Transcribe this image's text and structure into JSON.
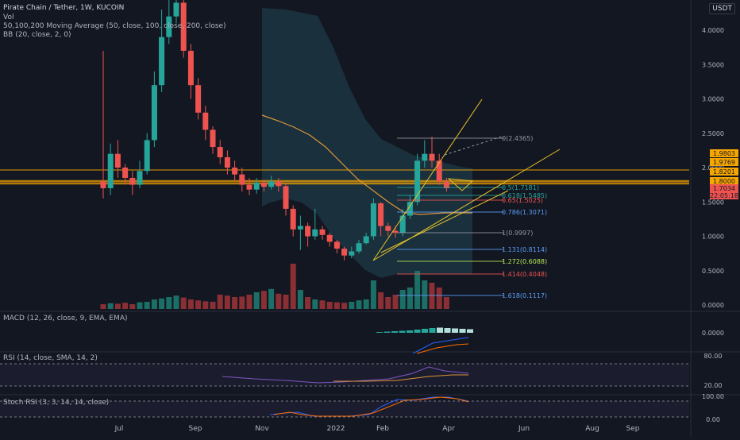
{
  "header": {
    "title": "Pirate Chain / Tether, 1W, KUCOIN",
    "currency": "USDT",
    "indicators": [
      "Vol",
      "50,100,200 Moving Average (50, close, 100, close, 200, close)",
      "BB (20, close, 2, 0)"
    ]
  },
  "panes": {
    "macd_label": "MACD (12, 26, close, 9, EMA, EMA)",
    "rsi_label": "RSI (14, close, SMA, 14, 2)",
    "stoch_label": "Stoch RSI (3, 3, 14, 14, close)"
  },
  "colors": {
    "up": "#26a69a",
    "down": "#ef5350",
    "bb_fill": "#1c3340",
    "ma": "#e0953a",
    "fib_line": "#9598a1",
    "channel": "#e6c229"
  },
  "chart_data": [
    {
      "type": "candlestick",
      "title": "Pirate Chain / Tether, 1W, KUCOIN",
      "y_scale": "log",
      "ylim": [
        0.0,
        4.5
      ],
      "y_ticks": [
        "4.0000",
        "3.5000",
        "3.0000",
        "2.5000",
        "2.0000",
        "1.5000",
        "1.0000",
        "0.5000",
        "0.0000"
      ],
      "x_ticks": [
        "Jul",
        "Sep",
        "Nov",
        "2022",
        "Feb",
        "Apr",
        "Jun",
        "Aug",
        "Sep"
      ],
      "price_labels": [
        {
          "text": "1.9803",
          "color": "#f7a600"
        },
        {
          "text": "1.9769",
          "color": "#f7a600"
        },
        {
          "text": "1.8201",
          "color": "#f7a600"
        },
        {
          "text": "1.8000",
          "color": "#f7a600"
        },
        {
          "text": "1.7034",
          "color": "#ef5350"
        },
        {
          "text": "22:05:18",
          "color": "#ef5350"
        }
      ],
      "fib_levels": [
        {
          "label": "0(2.4365)",
          "value": 2.4365,
          "color": "#9598a1"
        },
        {
          "label": "0.5(1.7181)",
          "value": 1.7181,
          "color": "#26a69a"
        },
        {
          "label": "0.618(1.5485)",
          "value": 1.5485,
          "color": "#26a69a"
        },
        {
          "label": "0.65(1.5025)",
          "value": 1.5025,
          "color": "#ef5350"
        },
        {
          "label": "0.786(1.3071)",
          "value": 1.3071,
          "color": "#5b9cf6"
        },
        {
          "label": "1(0.9997)",
          "value": 0.9997,
          "color": "#9598a1"
        },
        {
          "label": "1.131(0.8114)",
          "value": 0.8114,
          "color": "#5b9cf6"
        },
        {
          "label": "1.272(0.6088)",
          "value": 0.6088,
          "color": "#b5e853"
        },
        {
          "label": "1.414(0.4048)",
          "value": 0.4048,
          "color": "#ef5350"
        },
        {
          "label": "1.618(0.1117)",
          "value": 0.1117,
          "color": "#5b9cf6"
        }
      ],
      "horizontal_levels": [
        1.9803,
        1.8201,
        1.8
      ],
      "candles": [
        [
          1.8,
          1.7,
          3.7,
          1.55
        ],
        [
          1.7,
          2.2,
          2.35,
          1.6
        ],
        [
          2.2,
          2.0,
          2.4,
          1.85
        ],
        [
          2.0,
          1.85,
          2.05,
          1.75
        ],
        [
          1.85,
          1.75,
          1.95,
          1.6
        ],
        [
          1.75,
          1.95,
          2.1,
          1.7
        ],
        [
          1.95,
          2.4,
          2.5,
          1.9
        ],
        [
          2.4,
          3.2,
          3.4,
          2.3
        ],
        [
          3.2,
          3.9,
          4.3,
          3.1
        ],
        [
          3.9,
          4.2,
          4.5,
          3.8
        ],
        [
          4.2,
          4.4,
          4.6,
          4.1
        ],
        [
          4.4,
          3.7,
          4.5,
          3.6
        ],
        [
          3.7,
          3.2,
          3.8,
          3.0
        ],
        [
          3.2,
          2.8,
          3.3,
          2.7
        ],
        [
          2.8,
          2.55,
          2.9,
          2.4
        ],
        [
          2.55,
          2.3,
          2.6,
          2.2
        ],
        [
          2.3,
          2.15,
          2.4,
          2.05
        ],
        [
          2.15,
          2.0,
          2.25,
          1.9
        ],
        [
          2.0,
          1.9,
          2.1,
          1.8
        ],
        [
          1.9,
          1.75,
          2.0,
          1.65
        ],
        [
          1.75,
          1.68,
          1.85,
          1.6
        ],
        [
          1.68,
          1.78,
          1.85,
          1.62
        ],
        [
          1.78,
          1.72,
          1.82,
          1.65
        ],
        [
          1.72,
          1.8,
          1.88,
          1.68
        ],
        [
          1.8,
          1.73,
          1.85,
          1.65
        ],
        [
          1.73,
          1.4,
          1.78,
          1.3
        ],
        [
          1.4,
          1.1,
          1.45,
          1.0
        ],
        [
          1.1,
          1.15,
          1.3,
          0.8
        ],
        [
          1.15,
          1.0,
          1.2,
          0.85
        ],
        [
          1.0,
          1.1,
          1.4,
          0.95
        ],
        [
          1.1,
          1.02,
          1.15,
          0.95
        ],
        [
          1.02,
          0.92,
          1.05,
          0.85
        ],
        [
          0.92,
          0.82,
          0.95,
          0.75
        ],
        [
          0.82,
          0.72,
          0.85,
          0.65
        ],
        [
          0.72,
          0.78,
          0.85,
          0.68
        ],
        [
          0.78,
          0.9,
          0.95,
          0.75
        ],
        [
          0.9,
          1.0,
          1.05,
          0.88
        ],
        [
          1.0,
          1.48,
          1.55,
          0.95
        ],
        [
          1.48,
          1.15,
          1.5,
          1.0
        ],
        [
          1.15,
          1.08,
          1.2,
          1.0
        ],
        [
          1.08,
          1.05,
          1.15,
          0.98
        ],
        [
          1.05,
          1.3,
          1.4,
          1.0
        ],
        [
          1.3,
          1.5,
          1.6,
          1.25
        ],
        [
          1.5,
          2.1,
          2.2,
          1.45
        ],
        [
          2.1,
          2.2,
          2.4,
          2.0
        ],
        [
          2.2,
          2.1,
          2.45,
          2.0
        ],
        [
          2.1,
          1.8,
          2.2,
          1.75
        ],
        [
          1.8,
          1.7,
          1.85,
          1.65
        ]
      ],
      "volume": [
        0.1,
        0.12,
        0.11,
        0.13,
        0.1,
        0.14,
        0.15,
        0.2,
        0.22,
        0.25,
        0.28,
        0.24,
        0.2,
        0.18,
        0.16,
        0.15,
        0.3,
        0.28,
        0.25,
        0.26,
        0.3,
        0.35,
        0.38,
        0.42,
        0.32,
        0.3,
        0.95,
        0.4,
        0.25,
        0.2,
        0.18,
        0.15,
        0.14,
        0.13,
        0.15,
        0.18,
        0.2,
        0.6,
        0.35,
        0.25,
        0.3,
        0.4,
        0.45,
        0.8,
        0.6,
        0.55,
        0.45,
        0.25
      ]
    },
    {
      "type": "histogram",
      "title": "MACD (12, 26, close, 9, EMA, EMA)",
      "y_ticks": [
        "0.0000"
      ],
      "values": [
        0.02,
        0.03,
        0.04,
        0.05,
        0.06,
        0.08,
        0.1,
        0.12,
        0.13,
        0.12,
        0.11,
        0.1,
        0.09
      ]
    },
    {
      "type": "line",
      "title": "RSI (14, close, SMA, 14, 2)",
      "y_ticks": [
        "80.00",
        "20.00"
      ],
      "ylim": [
        0,
        100
      ],
      "bands": [
        30,
        70
      ]
    },
    {
      "type": "line",
      "title": "Stoch RSI (3, 3, 14, 14, close)",
      "y_ticks": [
        "100.00",
        "0.00"
      ],
      "ylim": [
        0,
        100
      ],
      "bands": [
        20,
        80
      ]
    }
  ]
}
